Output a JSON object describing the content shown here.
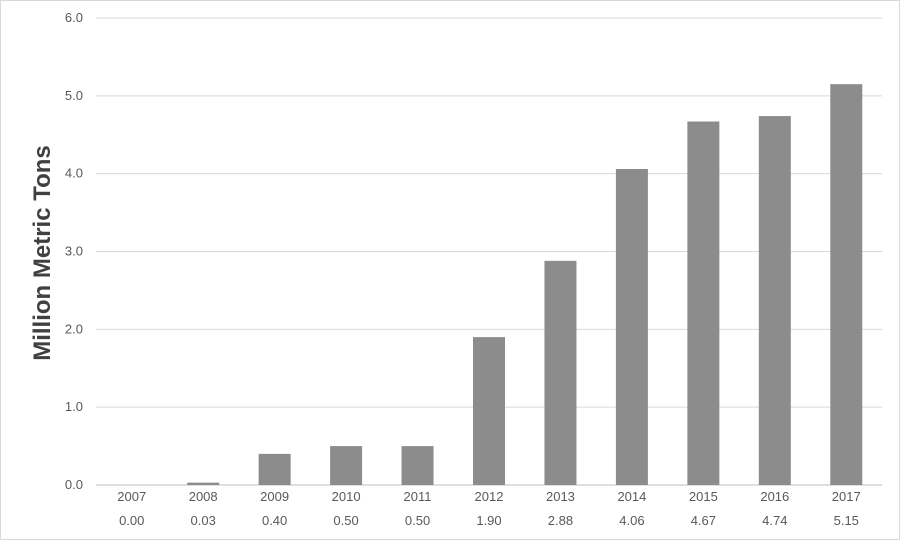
{
  "chart_data": {
    "type": "bar",
    "categories": [
      "2007",
      "2008",
      "2009",
      "2010",
      "2011",
      "2012",
      "2013",
      "2014",
      "2015",
      "2016",
      "2017"
    ],
    "values": [
      0.0,
      0.03,
      0.4,
      0.5,
      0.5,
      1.9,
      2.88,
      4.06,
      4.67,
      4.74,
      5.15
    ],
    "value_labels": [
      "0.00",
      "0.03",
      "0.40",
      "0.50",
      "0.50",
      "1.90",
      "2.88",
      "4.06",
      "4.67",
      "4.74",
      "5.15"
    ],
    "ylabel": "Million Metric Tons",
    "ylim": [
      0,
      6
    ],
    "yticks": [
      "0.0",
      "1.0",
      "2.0",
      "3.0",
      "4.0",
      "5.0",
      "6.0"
    ],
    "grid": true,
    "bar_color": "#8c8c8c"
  }
}
